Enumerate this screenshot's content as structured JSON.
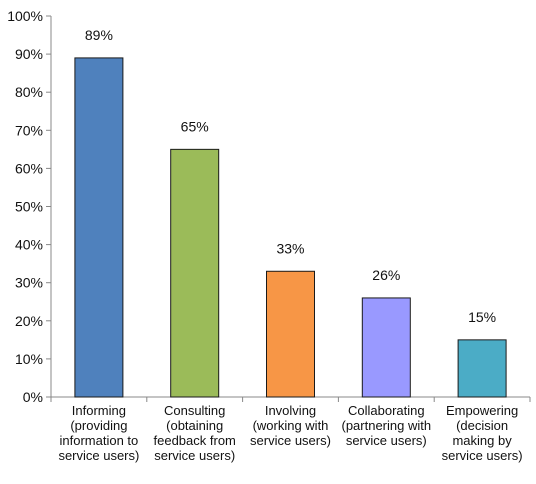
{
  "chart_data": {
    "type": "bar",
    "categories": [
      [
        "Informing",
        "(providing",
        "information to",
        "service users)"
      ],
      [
        "Consulting",
        "(obtaining",
        "feedback from",
        "service users)"
      ],
      [
        "Involving",
        "(working with",
        "service users)"
      ],
      [
        "Collaborating",
        "(partnering with",
        "service users)"
      ],
      [
        "Empowering",
        "(decision",
        "making by",
        "service users)"
      ]
    ],
    "values": [
      89,
      65,
      33,
      26,
      15
    ],
    "data_labels": [
      "89%",
      "65%",
      "33%",
      "26%",
      "15%"
    ],
    "bar_colors": [
      "#4F81BD",
      "#9BBB59",
      "#F79646",
      "#9999FF",
      "#4BACC6"
    ],
    "yticks": [
      "0%",
      "10%",
      "20%",
      "30%",
      "40%",
      "50%",
      "60%",
      "70%",
      "80%",
      "90%",
      "100%"
    ],
    "ylim": [
      0,
      100
    ],
    "grid": false,
    "legend": "none",
    "title": "",
    "xlabel": "",
    "ylabel": ""
  }
}
